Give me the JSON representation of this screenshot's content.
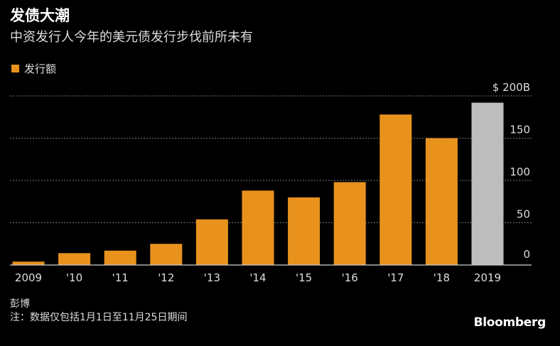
{
  "header": {
    "title": "发债大潮",
    "subtitle": "中资发行人今年的美元债发行步伐前所未有"
  },
  "legend": {
    "label": "发行额"
  },
  "footer": {
    "source": "彭博",
    "note": "注：数据仅包括1月1日至11月25日期间",
    "brand": "Bloomberg"
  },
  "colors": {
    "bar": "#E8921D",
    "highlight": "#BDBDBD",
    "grid": "#777777",
    "axis": "#CCCCCC"
  },
  "chart_data": {
    "type": "bar",
    "categories": [
      "2009",
      "'10",
      "'11",
      "'12",
      "'13",
      "'14",
      "'15",
      "'16",
      "'17",
      "'18",
      "2019"
    ],
    "series": [
      {
        "name": "发行额",
        "values": [
          4,
          14,
          17,
          25,
          54,
          88,
          80,
          98,
          178,
          150,
          192
        ]
      }
    ],
    "highlight_index": 10,
    "ylim": [
      0,
      200
    ],
    "yticks": [
      {
        "value": 0,
        "label": "0"
      },
      {
        "value": 50,
        "label": "50"
      },
      {
        "value": 100,
        "label": "100"
      },
      {
        "value": 150,
        "label": "150"
      },
      {
        "value": 200,
        "label": "$ 200B"
      }
    ],
    "grid": true,
    "legend_position": "top-left"
  }
}
